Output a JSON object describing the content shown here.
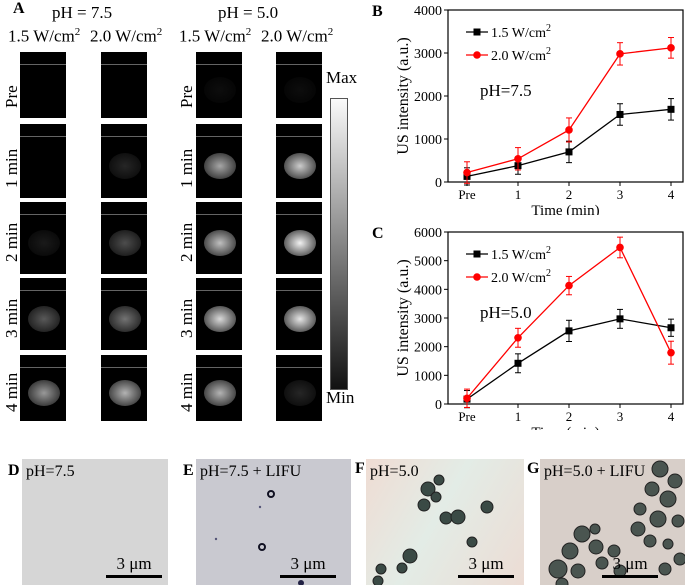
{
  "panelA": {
    "label": "A",
    "groups": [
      "pH = 7.5",
      "pH = 5.0"
    ],
    "columns": [
      "1.5 W/cm",
      "2.0 W/cm",
      "1.5 W/cm",
      "2.0 W/cm"
    ],
    "superscript": "2",
    "rows": [
      "Pre",
      "1 min",
      "2 min",
      "3 min",
      "4 min"
    ],
    "colorbar": {
      "max": "Max",
      "min": "Min"
    }
  },
  "chart_data": [
    {
      "panel": "B",
      "type": "line",
      "categories": [
        "Pre",
        "1",
        "2",
        "3",
        "4"
      ],
      "xlabel": "Time (min)",
      "ylabel": "US intensity (a.u.)",
      "ylim": [
        0,
        4000
      ],
      "yticks": [
        "0",
        "1000",
        "2000",
        "3000",
        "4000"
      ],
      "annotation": "pH=7.5",
      "legend": "top-left",
      "series": [
        {
          "name": "1.5 W/cm",
          "sup": "2",
          "color": "#000000",
          "marker": "square",
          "values": [
            130,
            380,
            700,
            1570,
            1690
          ],
          "errors": [
            200,
            200,
            250,
            250,
            250
          ]
        },
        {
          "name": "2.0 W/cm",
          "sup": "2",
          "color": "#ff0000",
          "marker": "circle",
          "values": [
            220,
            540,
            1210,
            2980,
            3120
          ],
          "errors": [
            250,
            260,
            280,
            260,
            240
          ]
        }
      ]
    },
    {
      "panel": "C",
      "type": "line",
      "categories": [
        "Pre",
        "1",
        "2",
        "3",
        "4"
      ],
      "xlabel": "Time (min)",
      "ylabel": "US intensity (a.u.)",
      "ylim": [
        0,
        6000
      ],
      "yticks": [
        "0",
        "1000",
        "2000",
        "3000",
        "4000",
        "5000",
        "6000"
      ],
      "annotation": "pH=5.0",
      "legend": "top-left",
      "series": [
        {
          "name": "1.5 W/cm",
          "sup": "2",
          "color": "#000000",
          "marker": "square",
          "values": [
            170,
            1420,
            2550,
            2970,
            2660
          ],
          "errors": [
            300,
            330,
            370,
            330,
            300
          ]
        },
        {
          "name": "2.0 W/cm",
          "sup": "2",
          "color": "#ff0000",
          "marker": "circle",
          "values": [
            200,
            2310,
            4130,
            5460,
            1790
          ],
          "errors": [
            320,
            330,
            320,
            360,
            400
          ]
        }
      ]
    }
  ],
  "micro": [
    {
      "label": "D",
      "text": "pH=7.5",
      "scale": "3 μm"
    },
    {
      "label": "E",
      "text": "pH=7.5 + LIFU",
      "scale": "3 μm"
    },
    {
      "label": "F",
      "text": "pH=5.0",
      "scale": "3 μm"
    },
    {
      "label": "G",
      "text": "pH=5.0 + LIFU",
      "scale": "3 μm"
    }
  ]
}
